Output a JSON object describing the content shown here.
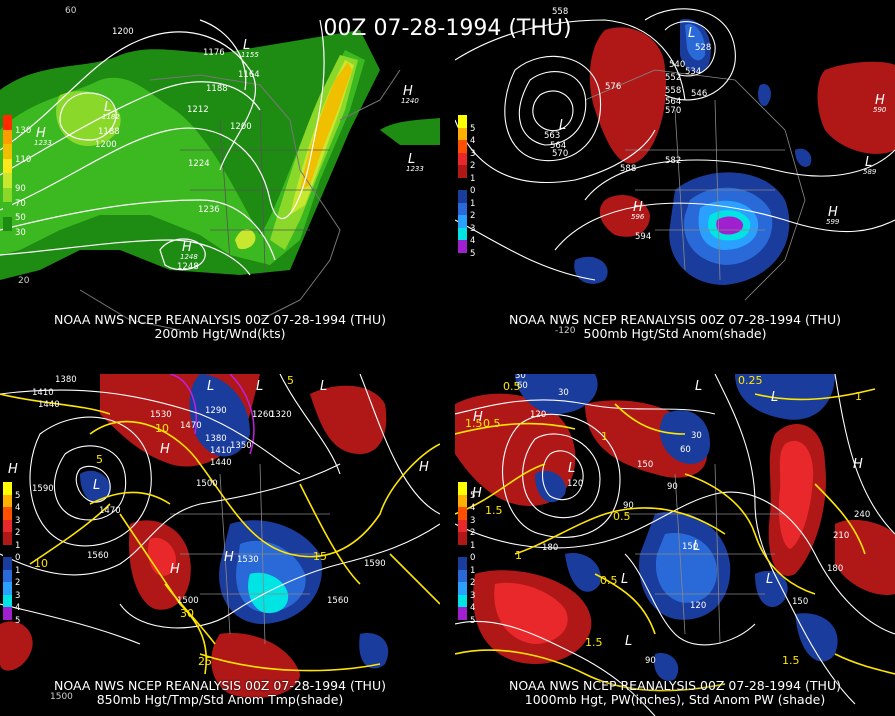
{
  "main_title": "00Z 07-28-1994 (THU)",
  "panels": [
    {
      "name": "200mb",
      "caption_line1": "NOAA NWS NCEP REANALYSIS 00Z 07-28-1994 (THU)",
      "caption_line2": "200mb Hgt/Wnd(kts)",
      "legend": [
        {
          "label": "130",
          "color": "#ff2a00"
        },
        {
          "label": "",
          "color": "#ff9c00"
        },
        {
          "label": "110",
          "color": "#f0c000"
        },
        {
          "label": "",
          "color": "#f8e81c"
        },
        {
          "label": "90",
          "color": "#c8e830"
        },
        {
          "label": "70",
          "color": "#8ad82a"
        },
        {
          "label": "50",
          "color": "#3cb820"
        },
        {
          "label": "30",
          "color": "#1e8c12"
        }
      ],
      "contour_labels": [
        "1200",
        "1176",
        "1164",
        "1188",
        "1212",
        "1200",
        "1188",
        "1200",
        "1224",
        "1236",
        "1248",
        "1240",
        "1233",
        "1233",
        "1248",
        "1155",
        "1182"
      ],
      "symbols": [
        "L",
        "L",
        "H",
        "H",
        "H",
        "L"
      ],
      "ticks": [
        "60",
        "20"
      ]
    },
    {
      "name": "500mb",
      "caption_line1": "NOAA NWS NCEP REANALYSIS 00Z 07-28-1994 (THU)",
      "caption_line2": "500mb Hgt/Std Anom(shade)",
      "legend": [
        {
          "label": "5",
          "color": "#ffff00"
        },
        {
          "label": "4",
          "color": "#ffb000"
        },
        {
          "label": "3",
          "color": "#ff5000"
        },
        {
          "label": "2",
          "color": "#e8282a"
        },
        {
          "label": "1",
          "color": "#b01818"
        },
        {
          "label": "0",
          "color": "#000000"
        },
        {
          "label": "1",
          "color": "#1a3c9c"
        },
        {
          "label": "2",
          "color": "#2a6ad8"
        },
        {
          "label": "3",
          "color": "#2aa0ff"
        },
        {
          "label": "4",
          "color": "#00e4e4"
        },
        {
          "label": "5",
          "color": "#a020d0"
        }
      ],
      "contour_labels": [
        "558",
        "528",
        "540",
        "534",
        "546",
        "552",
        "558",
        "564",
        "570",
        "576",
        "563",
        "564",
        "570",
        "582",
        "588",
        "594",
        "596",
        "599",
        "589",
        "590"
      ],
      "symbols": [
        "L",
        "L",
        "L",
        "H",
        "H",
        "H",
        "L"
      ],
      "ticks": [
        "-120"
      ]
    },
    {
      "name": "850mb",
      "caption_line1": "NOAA NWS NCEP REANALYSIS 00Z 07-28-1994 (THU)",
      "caption_line2": "850mb Hgt/Tmp/Std Anom Tmp(shade)",
      "legend": [
        {
          "label": "5",
          "color": "#ffff00"
        },
        {
          "label": "4",
          "color": "#ffb000"
        },
        {
          "label": "3",
          "color": "#ff5000"
        },
        {
          "label": "2",
          "color": "#e8282a"
        },
        {
          "label": "1",
          "color": "#b01818"
        },
        {
          "label": "0",
          "color": "#000000"
        },
        {
          "label": "1",
          "color": "#1a3c9c"
        },
        {
          "label": "2",
          "color": "#2a6ad8"
        },
        {
          "label": "3",
          "color": "#2aa0ff"
        },
        {
          "label": "4",
          "color": "#00e4e4"
        },
        {
          "label": "5",
          "color": "#a020d0"
        }
      ],
      "contour_labels": [
        "1380",
        "1410",
        "1440",
        "1530",
        "1290",
        "1350",
        "1260",
        "1320",
        "1380",
        "1410",
        "1440",
        "1470",
        "1590",
        "1500",
        "1530",
        "1560",
        "1560",
        "1590",
        "1500",
        "1500",
        "1470",
        "1440",
        "1410"
      ],
      "temp_labels": [
        "10",
        "5",
        "15",
        "10",
        "30",
        "25",
        "20",
        "15",
        "10",
        "5"
      ],
      "symbols": [
        "H",
        "L",
        "L",
        "L",
        "H",
        "H",
        "L",
        "H",
        "H"
      ],
      "ticks": [
        "1500"
      ]
    },
    {
      "name": "1000mb",
      "caption_line1": "NOAA NWS NCEP REANALYSIS 00Z 07-28-1994 (THU)",
      "caption_line2": "1000mb Hgt, PW(inches), Std Anom PW (shade)",
      "legend": [
        {
          "label": "5",
          "color": "#ffff00"
        },
        {
          "label": "4",
          "color": "#ffb000"
        },
        {
          "label": "3",
          "color": "#ff5000"
        },
        {
          "label": "2",
          "color": "#e8282a"
        },
        {
          "label": "1",
          "color": "#b01818"
        },
        {
          "label": "0",
          "color": "#000000"
        },
        {
          "label": "1",
          "color": "#1a3c9c"
        },
        {
          "label": "2",
          "color": "#2a6ad8"
        },
        {
          "label": "3",
          "color": "#2aa0ff"
        },
        {
          "label": "4",
          "color": "#00e4e4"
        },
        {
          "label": "5",
          "color": "#a020d0"
        }
      ],
      "contour_labels": [
        "30",
        "60",
        "30",
        "120",
        "150",
        "90",
        "90",
        "120",
        "180",
        "150",
        "120",
        "150",
        "90",
        "60",
        "30",
        "210",
        "240",
        "180",
        "150",
        "120",
        "90",
        "120"
      ],
      "pw_labels": [
        "0.5",
        "0.25",
        "1.5",
        "0.5",
        "1",
        "0.5",
        "1",
        "1.5",
        "0.5",
        "1.5",
        "0.5",
        "1",
        "0.5",
        "1.5",
        "0.5",
        "1",
        "1.5",
        "0.25",
        "1.5"
      ],
      "symbols": [
        "H",
        "L",
        "L",
        "L",
        "H",
        "L",
        "L",
        "L",
        "H",
        "L"
      ],
      "ticks": []
    }
  ]
}
